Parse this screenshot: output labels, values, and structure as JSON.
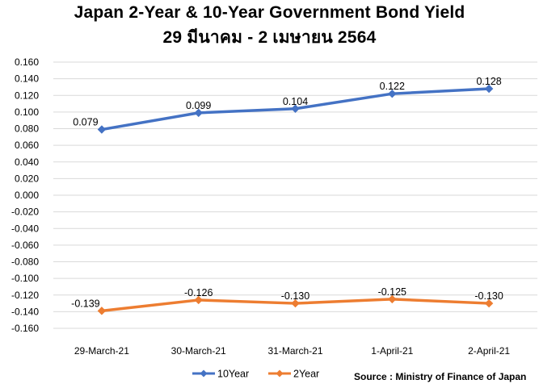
{
  "chart_data": {
    "type": "line",
    "title": "Japan 2-Year & 10-Year Government Bond Yield",
    "subtitle": "29 มีนาคม - 2 เมษายน 2564",
    "categories": [
      "29-March-21",
      "30-March-21",
      "31-March-21",
      "1-April-21",
      "2-April-21"
    ],
    "series": [
      {
        "name": "10Year",
        "values": [
          0.079,
          0.099,
          0.104,
          0.122,
          0.128
        ],
        "labels": [
          "0.079",
          "0.099",
          "0.104",
          "0.122",
          "0.128"
        ],
        "color": "#4472C4"
      },
      {
        "name": "2Year",
        "values": [
          -0.139,
          -0.126,
          -0.13,
          -0.125,
          -0.13
        ],
        "labels": [
          "-0.139",
          "-0.126",
          "-0.130",
          "-0.125",
          "-0.130"
        ],
        "color": "#ED7D31"
      }
    ],
    "yticks": [
      "0.160",
      "0.140",
      "0.120",
      "0.100",
      "0.080",
      "0.060",
      "0.040",
      "0.020",
      "0.000",
      "-0.020",
      "-0.040",
      "-0.060",
      "-0.080",
      "-0.100",
      "-0.120",
      "-0.140",
      "-0.160"
    ],
    "ylim": [
      -0.16,
      0.16
    ],
    "grid": true,
    "legend_position": "bottom",
    "source": "Source : Ministry of Finance of Japan"
  }
}
